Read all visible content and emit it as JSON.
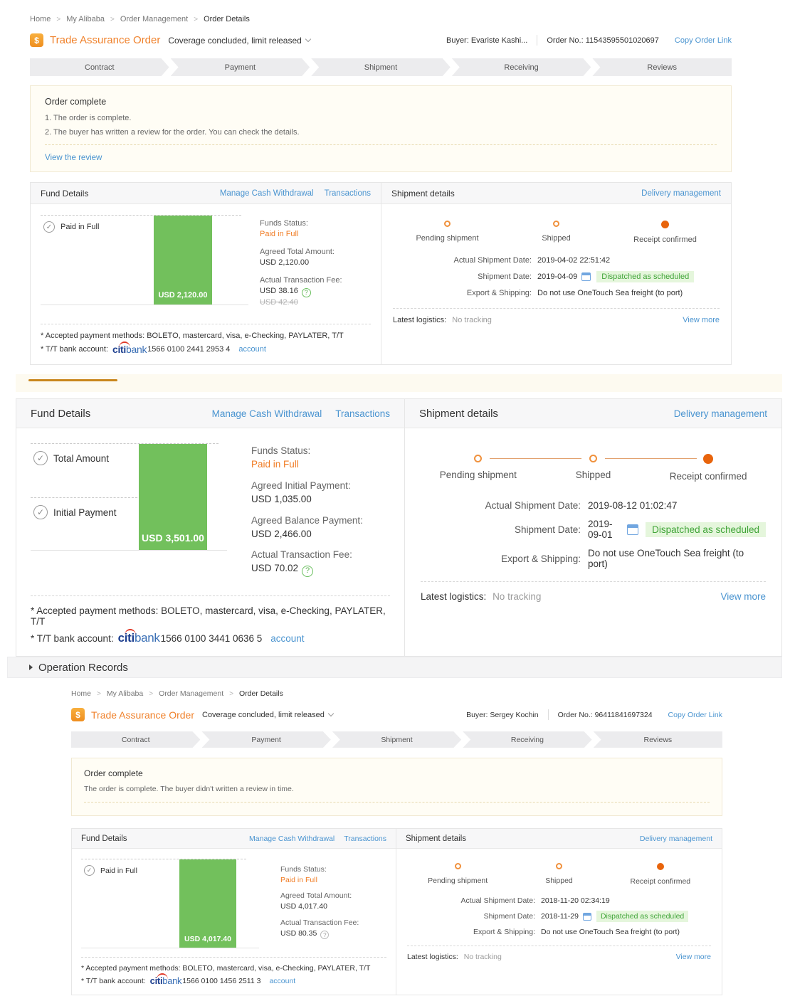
{
  "colors": {
    "brand_orange": "#f0822c",
    "link_blue": "#4a94d0",
    "bar_green": "#72c05c",
    "status_orange": "#f07b23",
    "badge_green_text": "#3fa437",
    "badge_green_bg": "#e5f6dc"
  },
  "breadcrumb": [
    "Home",
    "My Alibaba",
    "Order Management",
    "Order Details"
  ],
  "steps": [
    "Contract",
    "Payment",
    "Shipment",
    "Receiving",
    "Reviews"
  ],
  "shipment_steps": [
    "Pending shipment",
    "Shipped",
    "Receipt confirmed"
  ],
  "common": {
    "trade_assurance_label": "Trade Assurance Order",
    "coverage_status": "Coverage concluded, limit released",
    "copy_order_link": "Copy Order Link",
    "order_complete_title": "Order complete",
    "fund_details_title": "Fund Details",
    "manage_cash_withdrawal": "Manage Cash Withdrawal",
    "transactions": "Transactions",
    "shipment_details_title": "Shipment details",
    "delivery_management": "Delivery management",
    "actual_shipment_date_label": "Actual Shipment Date:",
    "shipment_date_label": "Shipment Date:",
    "export_shipping_label": "Export & Shipping:",
    "export_shipping_value": "Do not use OneTouch Sea freight (to port)",
    "dispatched_badge": "Dispatched as scheduled",
    "latest_logistics_label": "Latest logistics:",
    "no_tracking": "No tracking",
    "view_more": "View more",
    "payment_methods": "* Accepted payment methods: BOLETO, mastercard, visa, e-Checking, PAYLATER, T/T",
    "tt_bank_prefix": "* T/T bank account:",
    "citibank_citi": "citi",
    "citibank_bank": "bank",
    "account_link": "account",
    "operation_records": "Operation Records"
  },
  "orders": [
    {
      "buyer": "Buyer: Evariste Kashi...",
      "order_no": "Order No.: 11543595501020697",
      "notice": {
        "lines": [
          "1. The order is complete.",
          "2. The buyer has written a review for the order. You can check the details."
        ],
        "link": "View the review"
      },
      "fund": {
        "checkpoints": [
          "Paid in Full"
        ],
        "bar_amount": "USD 2,120.00",
        "info": [
          {
            "label": "Funds Status:",
            "value": "Paid in Full"
          },
          {
            "label": "Agreed Total Amount:",
            "value": "USD 2,120.00"
          },
          {
            "label": "Actual Transaction Fee:",
            "value": "USD 38.16",
            "strike": "USD 42.40"
          }
        ],
        "bank_account": "1566 0100 2441 2953 4"
      },
      "shipment": {
        "actual_date": "2019-04-02 22:51:42",
        "date": "2019-04-09"
      }
    },
    {
      "fund": {
        "checkpoints": [
          "Total Amount",
          "Initial Payment"
        ],
        "bar_amount": "USD 3,501.00",
        "info": [
          {
            "label": "Funds Status:",
            "value": "Paid in Full"
          },
          {
            "label": "Agreed Initial Payment:",
            "value": "USD 1,035.00"
          },
          {
            "label": "Agreed Balance Payment:",
            "value": "USD 2,466.00"
          },
          {
            "label": "Actual Transaction Fee:",
            "value": "USD 70.02"
          }
        ],
        "bank_account": "1566 0100 3441 0636 5"
      },
      "shipment": {
        "actual_date": "2019-08-12 01:02:47",
        "date": "2019-09-01"
      }
    },
    {
      "buyer": "Buyer: Sergey Kochin",
      "order_no": "Order No.: 96411841697324",
      "notice": {
        "lines": [
          "The order is complete. The buyer didn't written a review in time."
        ]
      },
      "fund": {
        "checkpoints": [
          "Paid in Full"
        ],
        "bar_amount": "USD 4,017.40",
        "info": [
          {
            "label": "Funds Status:",
            "value": "Paid in Full"
          },
          {
            "label": "Agreed Total Amount:",
            "value": "USD 4,017.40"
          },
          {
            "label": "Actual Transaction Fee:",
            "value": "USD 80.35"
          }
        ],
        "bank_account": "1566 0100 1456 2511 3"
      },
      "shipment": {
        "actual_date": "2018-11-20 02:34:19",
        "date": "2018-11-29"
      }
    }
  ]
}
